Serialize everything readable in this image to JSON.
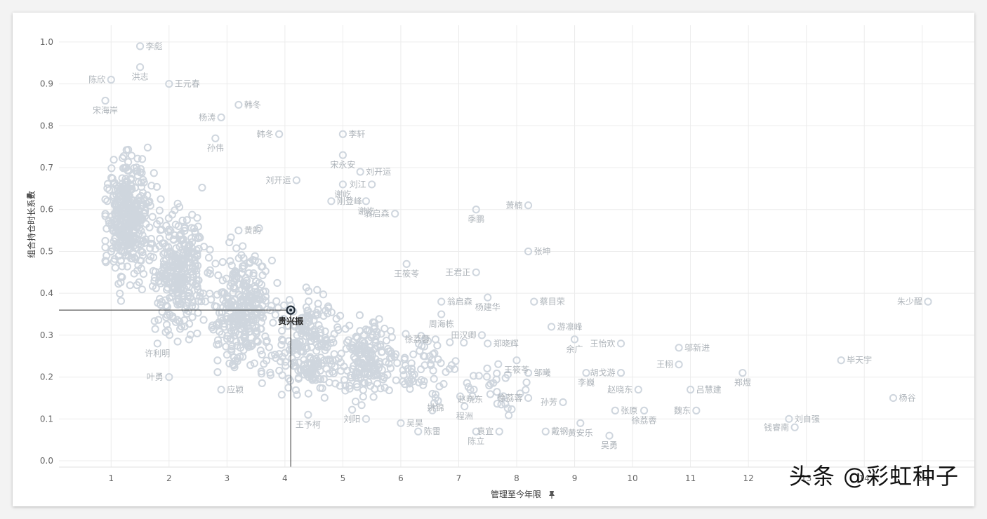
{
  "chart_data": {
    "type": "scatter",
    "xlabel": "管理至今年限",
    "ylabel": "组合持仓时长系数",
    "xlim": [
      0.1,
      15.9
    ],
    "ylim": [
      -0.015,
      1.04
    ],
    "x_ticks": [
      1,
      2,
      3,
      4,
      5,
      6,
      7,
      8,
      9,
      10,
      11,
      12,
      13,
      14,
      15
    ],
    "y_ticks": [
      "0.0",
      "0.1",
      "0.2",
      "0.3",
      "0.4",
      "0.5",
      "0.6",
      "0.7",
      "0.8",
      "0.9",
      "1.0"
    ],
    "grid": true,
    "highlight": {
      "name": "贵兴振",
      "x": 4.1,
      "y": 0.36
    },
    "labeled_points": [
      {
        "name": "李彪",
        "x": 1.5,
        "y": 0.99
      },
      {
        "name": "洪志",
        "x": 1.5,
        "y": 0.94
      },
      {
        "name": "陈欣",
        "x": 1.0,
        "y": 0.91
      },
      {
        "name": "王元春",
        "x": 2.0,
        "y": 0.9
      },
      {
        "name": "宋海岸",
        "x": 0.9,
        "y": 0.86
      },
      {
        "name": "杨涛",
        "x": 2.9,
        "y": 0.82
      },
      {
        "name": "韩冬",
        "x": 3.2,
        "y": 0.85
      },
      {
        "name": "孙伟",
        "x": 2.8,
        "y": 0.77
      },
      {
        "name": "韩冬",
        "x": 3.9,
        "y": 0.78
      },
      {
        "name": "李轩",
        "x": 5.0,
        "y": 0.78
      },
      {
        "name": "宋永安",
        "x": 5.0,
        "y": 0.73
      },
      {
        "name": "刘开运",
        "x": 4.2,
        "y": 0.67
      },
      {
        "name": "刘开运",
        "x": 5.3,
        "y": 0.69
      },
      {
        "name": "谢屹",
        "x": 5.0,
        "y": 0.66
      },
      {
        "name": "刘江",
        "x": 5.5,
        "y": 0.66
      },
      {
        "name": "刚登峰",
        "x": 4.8,
        "y": 0.62
      },
      {
        "name": "谢屹",
        "x": 5.4,
        "y": 0.62
      },
      {
        "name": "翁启森",
        "x": 5.9,
        "y": 0.59
      },
      {
        "name": "黄韵",
        "x": 3.2,
        "y": 0.55
      },
      {
        "name": "季鹏",
        "x": 7.3,
        "y": 0.6
      },
      {
        "name": "萧楠",
        "x": 8.2,
        "y": 0.61
      },
      {
        "name": "张坤",
        "x": 8.2,
        "y": 0.5
      },
      {
        "name": "王筱苓",
        "x": 6.1,
        "y": 0.47
      },
      {
        "name": "王君正",
        "x": 7.3,
        "y": 0.45
      },
      {
        "name": "翁启森",
        "x": 6.7,
        "y": 0.38
      },
      {
        "name": "杨建华",
        "x": 7.5,
        "y": 0.39
      },
      {
        "name": "朱少醒",
        "x": 15.1,
        "y": 0.38
      },
      {
        "name": "蔡目荣",
        "x": 8.3,
        "y": 0.38
      },
      {
        "name": "周海栋",
        "x": 6.7,
        "y": 0.35
      },
      {
        "name": "田汉卿",
        "x": 7.4,
        "y": 0.3
      },
      {
        "name": "游凛峰",
        "x": 8.6,
        "y": 0.32
      },
      {
        "name": "余广",
        "x": 9.0,
        "y": 0.29
      },
      {
        "name": "徐荔蓉",
        "x": 6.6,
        "y": 0.29
      },
      {
        "name": "郑晓辉",
        "x": 7.5,
        "y": 0.28
      },
      {
        "name": "许利明",
        "x": 1.8,
        "y": 0.28
      },
      {
        "name": "王怡欢",
        "x": 9.8,
        "y": 0.28
      },
      {
        "name": "邬新进",
        "x": 10.8,
        "y": 0.27
      },
      {
        "name": "王筱苓",
        "x": 8.0,
        "y": 0.24
      },
      {
        "name": "王栩",
        "x": 10.8,
        "y": 0.23
      },
      {
        "name": "毕天宇",
        "x": 13.6,
        "y": 0.24
      },
      {
        "name": "郑煜",
        "x": 11.9,
        "y": 0.21
      },
      {
        "name": "胡戈游",
        "x": 9.8,
        "y": 0.21
      },
      {
        "name": "邹曦",
        "x": 8.2,
        "y": 0.21
      },
      {
        "name": "李巍",
        "x": 9.2,
        "y": 0.21
      },
      {
        "name": "叶勇",
        "x": 2.0,
        "y": 0.2
      },
      {
        "name": "吕慧建",
        "x": 11.0,
        "y": 0.17
      },
      {
        "name": "赵晓东",
        "x": 7.2,
        "y": 0.17
      },
      {
        "name": "赵晓东",
        "x": 10.1,
        "y": 0.17
      },
      {
        "name": "应颖",
        "x": 2.9,
        "y": 0.17
      },
      {
        "name": "姚锦",
        "x": 6.6,
        "y": 0.15
      },
      {
        "name": "徐荔蓉",
        "x": 8.2,
        "y": 0.15
      },
      {
        "name": "杨谷",
        "x": 14.5,
        "y": 0.15
      },
      {
        "name": "程洲",
        "x": 7.1,
        "y": 0.13
      },
      {
        "name": "孙芳",
        "x": 8.8,
        "y": 0.14
      },
      {
        "name": "张原",
        "x": 9.7,
        "y": 0.12
      },
      {
        "name": "徐荔蓉",
        "x": 10.2,
        "y": 0.12
      },
      {
        "name": "魏东",
        "x": 11.1,
        "y": 0.12
      },
      {
        "name": "刘自强",
        "x": 12.7,
        "y": 0.1
      },
      {
        "name": "王予柯",
        "x": 4.4,
        "y": 0.11
      },
      {
        "name": "刘阳",
        "x": 5.4,
        "y": 0.1
      },
      {
        "name": "吴昊",
        "x": 6.0,
        "y": 0.09
      },
      {
        "name": "黄安乐",
        "x": 9.1,
        "y": 0.09
      },
      {
        "name": "钱睿南",
        "x": 12.8,
        "y": 0.08
      },
      {
        "name": "陈雷",
        "x": 6.3,
        "y": 0.07
      },
      {
        "name": "陈立",
        "x": 7.3,
        "y": 0.07
      },
      {
        "name": "袁宜",
        "x": 7.7,
        "y": 0.07
      },
      {
        "name": "戴钢",
        "x": 8.5,
        "y": 0.07
      },
      {
        "name": "吴勇",
        "x": 9.6,
        "y": 0.06
      }
    ]
  },
  "watermark": "头条 @彩虹种子",
  "pin_icon": "pin-icon"
}
